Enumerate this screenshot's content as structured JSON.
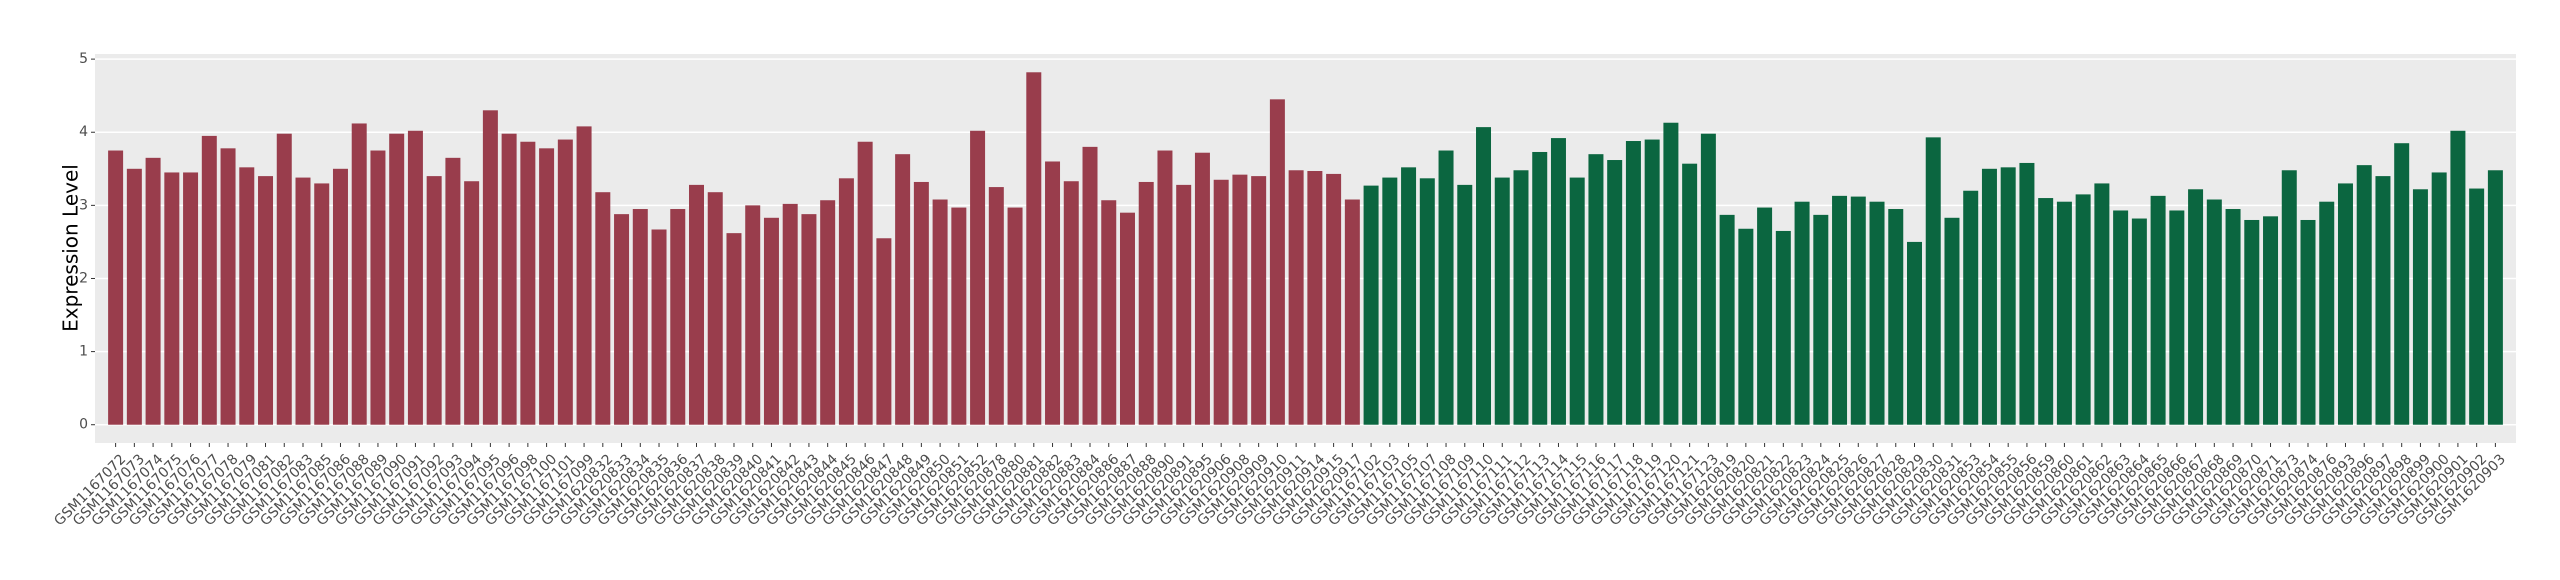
{
  "chart_data": {
    "type": "bar",
    "ylabel": "Expression Level",
    "categories": [
      "GSM1167072",
      "GSM1167073",
      "GSM1167074",
      "GSM1167075",
      "GSM1167076",
      "GSM1167077",
      "GSM1167078",
      "GSM1167079",
      "GSM1167081",
      "GSM1167082",
      "GSM1167083",
      "GSM1167085",
      "GSM1167086",
      "GSM1167088",
      "GSM1167089",
      "GSM1167090",
      "GSM1167091",
      "GSM1167092",
      "GSM1167093",
      "GSM1167094",
      "GSM1167095",
      "GSM1167096",
      "GSM1167098",
      "GSM1167100",
      "GSM1167101",
      "GSM1167099",
      "GSM1620832",
      "GSM1620833",
      "GSM1620834",
      "GSM1620835",
      "GSM1620836",
      "GSM1620837",
      "GSM1620838",
      "GSM1620839",
      "GSM1620840",
      "GSM1620841",
      "GSM1620842",
      "GSM1620843",
      "GSM1620844",
      "GSM1620845",
      "GSM1620846",
      "GSM1620847",
      "GSM1620848",
      "GSM1620849",
      "GSM1620850",
      "GSM1620851",
      "GSM1620852",
      "GSM1620878",
      "GSM1620880",
      "GSM1620881",
      "GSM1620882",
      "GSM1620883",
      "GSM1620884",
      "GSM1620886",
      "GSM1620887",
      "GSM1620888",
      "GSM1620890",
      "GSM1620891",
      "GSM1620895",
      "GSM1620906",
      "GSM1620908",
      "GSM1620909",
      "GSM1620910",
      "GSM1620911",
      "GSM1620914",
      "GSM1620915",
      "GSM1620917",
      "GSM1167102",
      "GSM1167103",
      "GSM1167105",
      "GSM1167107",
      "GSM1167108",
      "GSM1167109",
      "GSM1167110",
      "GSM1167111",
      "GSM1167112",
      "GSM1167113",
      "GSM1167114",
      "GSM1167115",
      "GSM1167116",
      "GSM1167117",
      "GSM1167118",
      "GSM1167119",
      "GSM1167120",
      "GSM1167121",
      "GSM1167123",
      "GSM1620819",
      "GSM1620820",
      "GSM1620821",
      "GSM1620822",
      "GSM1620823",
      "GSM1620824",
      "GSM1620825",
      "GSM1620826",
      "GSM1620827",
      "GSM1620828",
      "GSM1620829",
      "GSM1620830",
      "GSM1620831",
      "GSM1620853",
      "GSM1620854",
      "GSM1620855",
      "GSM1620856",
      "GSM1620859",
      "GSM1620860",
      "GSM1620861",
      "GSM1620862",
      "GSM1620863",
      "GSM1620864",
      "GSM1620865",
      "GSM1620866",
      "GSM1620867",
      "GSM1620868",
      "GSM1620869",
      "GSM1620870",
      "GSM1620871",
      "GSM1620873",
      "GSM1620874",
      "GSM1620876",
      "GSM1620893",
      "GSM1620896",
      "GSM1620897",
      "GSM1620898",
      "GSM1620899",
      "GSM1620900",
      "GSM1620901",
      "GSM1620902",
      "GSM1620903"
    ],
    "values": [
      3.75,
      3.5,
      3.65,
      3.45,
      3.45,
      3.95,
      3.78,
      3.52,
      3.4,
      3.98,
      3.38,
      3.3,
      3.5,
      4.12,
      3.75,
      3.98,
      4.02,
      3.4,
      3.65,
      3.33,
      4.3,
      3.98,
      3.87,
      3.78,
      3.9,
      4.08,
      3.18,
      2.88,
      2.95,
      2.67,
      2.95,
      3.28,
      3.18,
      2.62,
      3.0,
      2.83,
      3.02,
      2.88,
      3.07,
      3.37,
      3.87,
      2.55,
      3.7,
      3.32,
      3.08,
      2.97,
      4.02,
      3.25,
      2.97,
      4.82,
      3.6,
      3.33,
      3.8,
      3.07,
      2.9,
      3.32,
      3.75,
      3.28,
      3.72,
      3.35,
      3.42,
      3.4,
      4.45,
      3.48,
      3.47,
      3.43,
      3.08,
      3.27,
      3.38,
      3.52,
      3.37,
      3.75,
      3.28,
      4.07,
      3.38,
      3.48,
      3.73,
      3.92,
      3.38,
      3.7,
      3.62,
      3.88,
      3.9,
      4.13,
      3.57,
      3.98,
      2.87,
      2.68,
      2.97,
      2.65,
      3.05,
      2.87,
      3.13,
      3.12,
      3.05,
      2.95,
      2.5,
      3.93,
      2.83,
      3.2,
      3.5,
      3.52,
      3.58,
      3.1,
      3.05,
      3.15,
      3.3,
      2.93,
      2.82,
      3.13,
      2.93,
      3.22,
      3.08,
      2.95,
      2.8,
      2.85,
      3.48,
      2.8,
      3.05,
      3.3,
      3.55,
      3.4,
      3.85,
      3.22,
      3.45,
      4.02,
      3.23,
      3.48
    ],
    "colors": [
      "#993d4c",
      "#993d4c",
      "#993d4c",
      "#993d4c",
      "#993d4c",
      "#993d4c",
      "#993d4c",
      "#993d4c",
      "#993d4c",
      "#993d4c",
      "#993d4c",
      "#993d4c",
      "#993d4c",
      "#993d4c",
      "#993d4c",
      "#993d4c",
      "#993d4c",
      "#993d4c",
      "#993d4c",
      "#993d4c",
      "#993d4c",
      "#993d4c",
      "#993d4c",
      "#993d4c",
      "#993d4c",
      "#993d4c",
      "#993d4c",
      "#993d4c",
      "#993d4c",
      "#993d4c",
      "#993d4c",
      "#993d4c",
      "#993d4c",
      "#993d4c",
      "#993d4c",
      "#993d4c",
      "#993d4c",
      "#993d4c",
      "#993d4c",
      "#993d4c",
      "#993d4c",
      "#993d4c",
      "#993d4c",
      "#993d4c",
      "#993d4c",
      "#993d4c",
      "#993d4c",
      "#993d4c",
      "#993d4c",
      "#993d4c",
      "#993d4c",
      "#993d4c",
      "#993d4c",
      "#993d4c",
      "#993d4c",
      "#993d4c",
      "#993d4c",
      "#993d4c",
      "#993d4c",
      "#993d4c",
      "#993d4c",
      "#993d4c",
      "#993d4c",
      "#993d4c",
      "#993d4c",
      "#993d4c",
      "#993d4c",
      "#0b6640",
      "#0b6640",
      "#0b6640",
      "#0b6640",
      "#0b6640",
      "#0b6640",
      "#0b6640",
      "#0b6640",
      "#0b6640",
      "#0b6640",
      "#0b6640",
      "#0b6640",
      "#0b6640",
      "#0b6640",
      "#0b6640",
      "#0b6640",
      "#0b6640",
      "#0b6640",
      "#0b6640",
      "#0b6640",
      "#0b6640",
      "#0b6640",
      "#0b6640",
      "#0b6640",
      "#0b6640",
      "#0b6640",
      "#0b6640",
      "#0b6640",
      "#0b6640",
      "#0b6640",
      "#0b6640",
      "#0b6640",
      "#0b6640",
      "#0b6640",
      "#0b6640",
      "#0b6640",
      "#0b6640",
      "#0b6640",
      "#0b6640",
      "#0b6640",
      "#0b6640",
      "#0b6640",
      "#0b6640",
      "#0b6640",
      "#0b6640",
      "#0b6640",
      "#0b6640",
      "#0b6640",
      "#0b6640",
      "#0b6640",
      "#0b6640",
      "#0b6640",
      "#0b6640",
      "#0b6640",
      "#0b6640",
      "#0b6640",
      "#0b6640",
      "#0b6640",
      "#0b6640",
      "#0b6640",
      "#0b6640"
    ],
    "ylim": [
      -0.25,
      5.07
    ],
    "yticks": [
      0,
      1,
      2,
      3,
      4,
      5
    ],
    "grid": true
  }
}
